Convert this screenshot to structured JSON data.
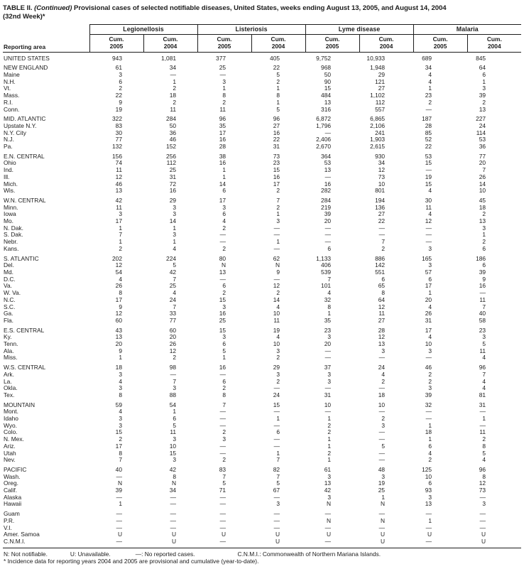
{
  "title": {
    "table_label": "TABLE II.",
    "continued": "(Continued)",
    "description": "Provisional cases of selected notifiable diseases, United States, weeks ending August 13, 2005, and August 14, 2004",
    "week": "(32nd Week)*"
  },
  "header": {
    "reporting_area": "Reporting area",
    "groups": [
      "Legionellosis",
      "Listeriosis",
      "Lyme disease",
      "Malaria"
    ],
    "subcolumns": [
      {
        "label": "Cum.",
        "year": "2005"
      },
      {
        "label": "Cum.",
        "year": "2004"
      }
    ]
  },
  "table": {
    "groups": [
      {
        "rows": [
          {
            "area": "UNITED STATES",
            "values": [
              "943",
              "1,081",
              "377",
              "405",
              "9,752",
              "10,933",
              "689",
              "845"
            ]
          }
        ]
      },
      {
        "rows": [
          {
            "area": "NEW ENGLAND",
            "values": [
              "61",
              "34",
              "25",
              "22",
              "968",
              "1,948",
              "34",
              "64"
            ]
          },
          {
            "area": "Maine",
            "values": [
              "3",
              "—",
              "—",
              "5",
              "50",
              "29",
              "4",
              "6"
            ]
          },
          {
            "area": "N.H.",
            "values": [
              "6",
              "1",
              "3",
              "2",
              "90",
              "121",
              "4",
              "1"
            ]
          },
          {
            "area": "Vt.",
            "values": [
              "2",
              "2",
              "1",
              "1",
              "15",
              "27",
              "1",
              "3"
            ]
          },
          {
            "area": "Mass.",
            "values": [
              "22",
              "18",
              "8",
              "8",
              "484",
              "1,102",
              "23",
              "39"
            ]
          },
          {
            "area": "R.I.",
            "values": [
              "9",
              "2",
              "2",
              "1",
              "13",
              "112",
              "2",
              "2"
            ]
          },
          {
            "area": "Conn.",
            "values": [
              "19",
              "11",
              "11",
              "5",
              "316",
              "557",
              "—",
              "13"
            ]
          }
        ]
      },
      {
        "rows": [
          {
            "area": "MID. ATLANTIC",
            "values": [
              "322",
              "284",
              "96",
              "96",
              "6,872",
              "6,865",
              "187",
              "227"
            ]
          },
          {
            "area": "Upstate N.Y.",
            "values": [
              "83",
              "50",
              "35",
              "27",
              "1,796",
              "2,106",
              "28",
              "24"
            ]
          },
          {
            "area": "N.Y. City",
            "values": [
              "30",
              "36",
              "17",
              "16",
              "—",
              "241",
              "85",
              "114"
            ]
          },
          {
            "area": "N.J.",
            "values": [
              "77",
              "46",
              "16",
              "22",
              "2,406",
              "1,903",
              "52",
              "53"
            ]
          },
          {
            "area": "Pa.",
            "values": [
              "132",
              "152",
              "28",
              "31",
              "2,670",
              "2,615",
              "22",
              "36"
            ]
          }
        ]
      },
      {
        "rows": [
          {
            "area": "E.N. CENTRAL",
            "values": [
              "156",
              "256",
              "38",
              "73",
              "364",
              "930",
              "53",
              "77"
            ]
          },
          {
            "area": "Ohio",
            "values": [
              "74",
              "112",
              "16",
              "23",
              "53",
              "34",
              "15",
              "20"
            ]
          },
          {
            "area": "Ind.",
            "values": [
              "11",
              "25",
              "1",
              "15",
              "13",
              "12",
              "—",
              "7"
            ]
          },
          {
            "area": "Ill.",
            "values": [
              "12",
              "31",
              "1",
              "16",
              "—",
              "73",
              "19",
              "26"
            ]
          },
          {
            "area": "Mich.",
            "values": [
              "46",
              "72",
              "14",
              "17",
              "16",
              "10",
              "15",
              "14"
            ]
          },
          {
            "area": "Wis.",
            "values": [
              "13",
              "16",
              "6",
              "2",
              "282",
              "801",
              "4",
              "10"
            ]
          }
        ]
      },
      {
        "rows": [
          {
            "area": "W.N. CENTRAL",
            "values": [
              "42",
              "29",
              "17",
              "7",
              "284",
              "194",
              "30",
              "45"
            ]
          },
          {
            "area": "Minn.",
            "values": [
              "11",
              "3",
              "3",
              "2",
              "219",
              "136",
              "11",
              "18"
            ]
          },
          {
            "area": "Iowa",
            "values": [
              "3",
              "3",
              "6",
              "1",
              "39",
              "27",
              "4",
              "2"
            ]
          },
          {
            "area": "Mo.",
            "values": [
              "17",
              "14",
              "4",
              "3",
              "20",
              "22",
              "12",
              "13"
            ]
          },
          {
            "area": "N. Dak.",
            "values": [
              "1",
              "1",
              "2",
              "—",
              "—",
              "—",
              "—",
              "3"
            ]
          },
          {
            "area": "S. Dak.",
            "values": [
              "7",
              "3",
              "—",
              "—",
              "—",
              "—",
              "—",
              "1"
            ]
          },
          {
            "area": "Nebr.",
            "values": [
              "1",
              "1",
              "—",
              "1",
              "—",
              "7",
              "—",
              "2"
            ]
          },
          {
            "area": "Kans.",
            "values": [
              "2",
              "4",
              "2",
              "—",
              "6",
              "2",
              "3",
              "6"
            ]
          }
        ]
      },
      {
        "rows": [
          {
            "area": "S. ATLANTIC",
            "values": [
              "202",
              "224",
              "80",
              "62",
              "1,133",
              "886",
              "165",
              "186"
            ]
          },
          {
            "area": "Del.",
            "values": [
              "12",
              "5",
              "N",
              "N",
              "406",
              "142",
              "3",
              "6"
            ]
          },
          {
            "area": "Md.",
            "values": [
              "54",
              "42",
              "13",
              "9",
              "539",
              "551",
              "57",
              "39"
            ]
          },
          {
            "area": "D.C.",
            "values": [
              "4",
              "7",
              "—",
              "—",
              "7",
              "6",
              "6",
              "9"
            ]
          },
          {
            "area": "Va.",
            "values": [
              "26",
              "25",
              "6",
              "12",
              "101",
              "65",
              "17",
              "16"
            ]
          },
          {
            "area": "W. Va.",
            "values": [
              "8",
              "4",
              "2",
              "2",
              "4",
              "8",
              "1",
              "—"
            ]
          },
          {
            "area": "N.C.",
            "values": [
              "17",
              "24",
              "15",
              "14",
              "32",
              "64",
              "20",
              "11"
            ]
          },
          {
            "area": "S.C.",
            "values": [
              "9",
              "7",
              "3",
              "4",
              "8",
              "12",
              "4",
              "7"
            ]
          },
          {
            "area": "Ga.",
            "values": [
              "12",
              "33",
              "16",
              "10",
              "1",
              "11",
              "26",
              "40"
            ]
          },
          {
            "area": "Fla.",
            "values": [
              "60",
              "77",
              "25",
              "11",
              "35",
              "27",
              "31",
              "58"
            ]
          }
        ]
      },
      {
        "rows": [
          {
            "area": "E.S. CENTRAL",
            "values": [
              "43",
              "60",
              "15",
              "19",
              "23",
              "28",
              "17",
              "23"
            ]
          },
          {
            "area": "Ky.",
            "values": [
              "13",
              "20",
              "3",
              "4",
              "3",
              "12",
              "4",
              "3"
            ]
          },
          {
            "area": "Tenn.",
            "values": [
              "20",
              "26",
              "6",
              "10",
              "20",
              "13",
              "10",
              "5"
            ]
          },
          {
            "area": "Ala.",
            "values": [
              "9",
              "12",
              "5",
              "3",
              "—",
              "3",
              "3",
              "11"
            ]
          },
          {
            "area": "Miss.",
            "values": [
              "1",
              "2",
              "1",
              "2",
              "—",
              "—",
              "—",
              "4"
            ]
          }
        ]
      },
      {
        "rows": [
          {
            "area": "W.S. CENTRAL",
            "values": [
              "18",
              "98",
              "16",
              "29",
              "37",
              "24",
              "46",
              "96"
            ]
          },
          {
            "area": "Ark.",
            "values": [
              "3",
              "—",
              "—",
              "3",
              "3",
              "4",
              "2",
              "7"
            ]
          },
          {
            "area": "La.",
            "values": [
              "4",
              "7",
              "6",
              "2",
              "3",
              "2",
              "2",
              "4"
            ]
          },
          {
            "area": "Okla.",
            "values": [
              "3",
              "3",
              "2",
              "—",
              "—",
              "—",
              "3",
              "4"
            ]
          },
          {
            "area": "Tex.",
            "values": [
              "8",
              "88",
              "8",
              "24",
              "31",
              "18",
              "39",
              "81"
            ]
          }
        ]
      },
      {
        "rows": [
          {
            "area": "MOUNTAIN",
            "values": [
              "59",
              "54",
              "7",
              "15",
              "10",
              "10",
              "32",
              "31"
            ]
          },
          {
            "area": "Mont.",
            "values": [
              "4",
              "1",
              "—",
              "—",
              "—",
              "—",
              "—",
              "—"
            ]
          },
          {
            "area": "Idaho",
            "values": [
              "3",
              "6",
              "—",
              "1",
              "1",
              "2",
              "—",
              "1"
            ]
          },
          {
            "area": "Wyo.",
            "values": [
              "3",
              "5",
              "—",
              "—",
              "2",
              "3",
              "1",
              "—"
            ]
          },
          {
            "area": "Colo.",
            "values": [
              "15",
              "11",
              "2",
              "6",
              "2",
              "—",
              "18",
              "11"
            ]
          },
          {
            "area": "N. Mex.",
            "values": [
              "2",
              "3",
              "3",
              "—",
              "1",
              "—",
              "1",
              "2"
            ]
          },
          {
            "area": "Ariz.",
            "values": [
              "17",
              "10",
              "—",
              "—",
              "1",
              "5",
              "6",
              "8"
            ]
          },
          {
            "area": "Utah",
            "values": [
              "8",
              "15",
              "—",
              "1",
              "2",
              "—",
              "4",
              "5"
            ]
          },
          {
            "area": "Nev.",
            "values": [
              "7",
              "3",
              "2",
              "7",
              "1",
              "—",
              "2",
              "4"
            ]
          }
        ]
      },
      {
        "rows": [
          {
            "area": "PACIFIC",
            "values": [
              "40",
              "42",
              "83",
              "82",
              "61",
              "48",
              "125",
              "96"
            ]
          },
          {
            "area": "Wash.",
            "values": [
              "—",
              "8",
              "7",
              "7",
              "3",
              "3",
              "10",
              "8"
            ]
          },
          {
            "area": "Oreg.",
            "values": [
              "N",
              "N",
              "5",
              "5",
              "13",
              "19",
              "6",
              "12"
            ]
          },
          {
            "area": "Calif.",
            "values": [
              "39",
              "34",
              "71",
              "67",
              "42",
              "25",
              "93",
              "73"
            ]
          },
          {
            "area": "Alaska",
            "values": [
              "—",
              "—",
              "—",
              "—",
              "3",
              "1",
              "3",
              "—"
            ]
          },
          {
            "area": "Hawaii",
            "values": [
              "1",
              "—",
              "—",
              "3",
              "N",
              "N",
              "13",
              "3"
            ]
          }
        ]
      },
      {
        "rows": [
          {
            "area": "Guam",
            "values": [
              "—",
              "—",
              "—",
              "—",
              "—",
              "—",
              "—",
              "—"
            ]
          },
          {
            "area": "P.R.",
            "values": [
              "—",
              "—",
              "—",
              "—",
              "N",
              "N",
              "1",
              "—"
            ]
          },
          {
            "area": "V.I.",
            "values": [
              "—",
              "—",
              "—",
              "—",
              "—",
              "—",
              "—",
              "—"
            ]
          },
          {
            "area": "Amer. Samoa",
            "values": [
              "U",
              "U",
              "U",
              "U",
              "U",
              "U",
              "U",
              "U"
            ]
          },
          {
            "area": "C.N.M.I.",
            "values": [
              "—",
              "U",
              "—",
              "U",
              "—",
              "U",
              "—",
              "U"
            ]
          }
        ]
      }
    ]
  },
  "footnotes": {
    "legend": [
      "N: Not notifiable.",
      "U: Unavailable.",
      "—: No reported cases.",
      "C.N.M.I.: Commonwealth of Northern Mariana Islands."
    ],
    "note": "* Incidence data for reporting years 2004 and 2005 are provisional and cumulative (year-to-date)."
  },
  "colors": {
    "text": "#1c1c1c",
    "background": "#ffffff",
    "rule": "#1c1c1c"
  }
}
